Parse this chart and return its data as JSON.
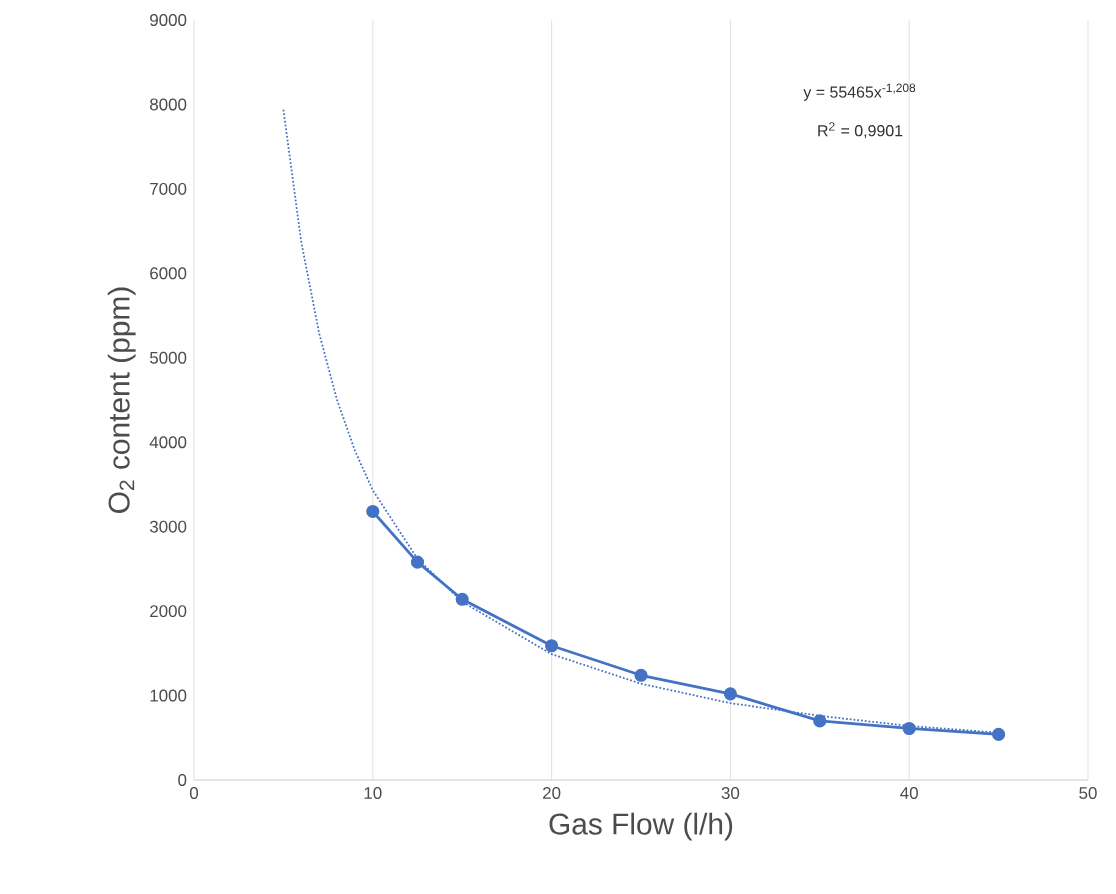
{
  "chart_data": {
    "type": "line",
    "xlabel": "Gas Flow (l/h)",
    "ylabel": "O$_{2}$ content (ppm)",
    "xlim": [
      0,
      50
    ],
    "ylim": [
      0,
      9000
    ],
    "xticks": [
      0,
      10,
      20,
      30,
      40,
      50
    ],
    "yticks": [
      0,
      1000,
      2000,
      3000,
      4000,
      5000,
      6000,
      7000,
      8000,
      9000
    ],
    "grid": "x",
    "annotations": [
      "y = 55465x$^{-1,208}$",
      "R$^{2}$ = 0,9901"
    ],
    "series": [
      {
        "color": "#4472c4",
        "marker": "circle",
        "line_style": "solid",
        "x": [
          10,
          12.5,
          15,
          20,
          25,
          30,
          35,
          40,
          45
        ],
        "values": [
          3180,
          2580,
          2140,
          1590,
          1240,
          1020,
          700,
          610,
          540
        ]
      },
      {
        "color": "#4472c4",
        "marker": "none",
        "line_style": "dotted",
        "x": [
          5,
          6,
          7,
          8,
          9,
          10,
          12.5,
          15,
          20,
          25,
          30,
          35,
          40,
          45
        ],
        "values": [
          7940,
          6370,
          5290,
          4500,
          3900,
          3430,
          2620,
          2110,
          1490,
          1140,
          910,
          760,
          640,
          560
        ]
      }
    ]
  }
}
